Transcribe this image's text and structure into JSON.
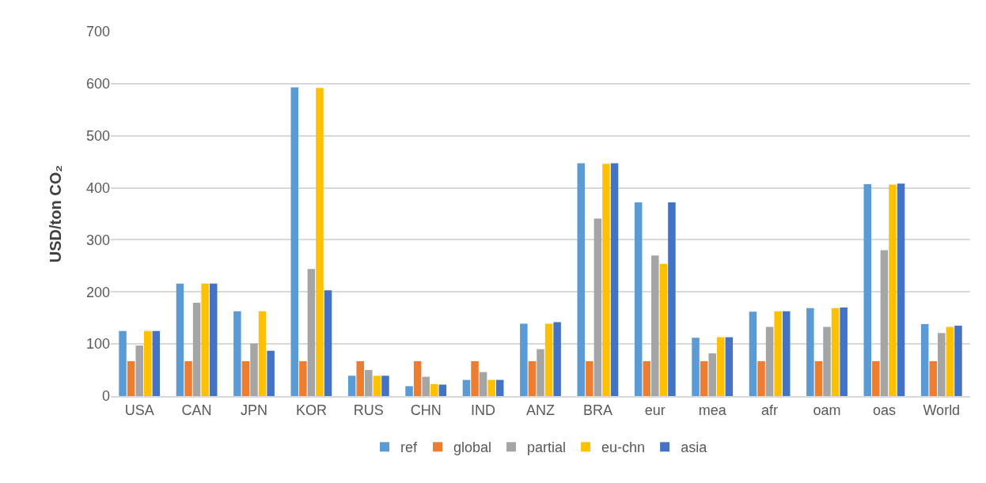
{
  "chart_data": {
    "type": "bar",
    "ylabel": "USD/ton CO₂",
    "categories": [
      "USA",
      "CAN",
      "JPN",
      "KOR",
      "RUS",
      "CHN",
      "IND",
      "ANZ",
      "BRA",
      "eur",
      "mea",
      "afr",
      "oam",
      "oas",
      "World"
    ],
    "series": [
      {
        "name": "ref",
        "color": "#5b9bd5",
        "values": [
          125,
          216,
          163,
          593,
          39,
          19,
          31,
          139,
          447,
          372,
          112,
          162,
          169,
          407,
          138
        ]
      },
      {
        "name": "global",
        "color": "#ed7d31",
        "values": [
          67,
          67,
          67,
          67,
          67,
          67,
          67,
          67,
          67,
          67,
          67,
          67,
          67,
          67,
          67
        ]
      },
      {
        "name": "partial",
        "color": "#a5a5a5",
        "values": [
          97,
          179,
          101,
          244,
          50,
          37,
          46,
          90,
          341,
          270,
          82,
          133,
          133,
          280,
          121
        ]
      },
      {
        "name": "eu-chn",
        "color": "#ffc000",
        "values": [
          125,
          216,
          163,
          592,
          39,
          23,
          31,
          139,
          446,
          254,
          113,
          163,
          169,
          406,
          133
        ]
      },
      {
        "name": "asia",
        "color": "#4472c4",
        "values": [
          125,
          216,
          87,
          203,
          39,
          22,
          31,
          142,
          447,
          372,
          113,
          163,
          170,
          408,
          135
        ]
      }
    ],
    "ylim": [
      0,
      700
    ],
    "yticks": [
      0,
      100,
      200,
      300,
      400,
      500,
      600,
      700
    ],
    "grid": "y",
    "legend": "bottom"
  }
}
